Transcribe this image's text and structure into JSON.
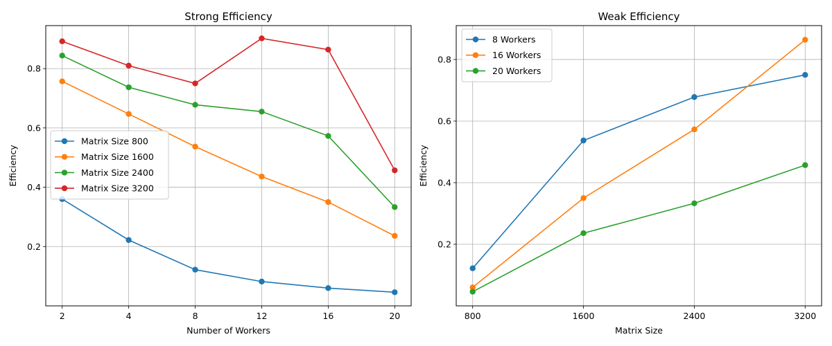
{
  "chart_data": [
    {
      "type": "line",
      "title": "Strong Efficiency",
      "xlabel": "Number of Workers",
      "ylabel": "Efficiency",
      "categories": [
        "2",
        "4",
        "8",
        "12",
        "16",
        "20"
      ],
      "ylim": [
        0.0,
        0.945
      ],
      "yticks": [
        "0.2",
        "0.4",
        "0.6",
        "0.8"
      ],
      "grid": true,
      "legend_position": "center-left",
      "series": [
        {
          "name": "Matrix Size 800",
          "color": "#1f77b4",
          "values": [
            0.36,
            0.222,
            0.122,
            0.082,
            0.06,
            0.046
          ]
        },
        {
          "name": "Matrix Size 1600",
          "color": "#ff7f0e",
          "values": [
            0.757,
            0.647,
            0.537,
            0.436,
            0.35,
            0.236
          ]
        },
        {
          "name": "Matrix Size 2400",
          "color": "#2ca02c",
          "values": [
            0.844,
            0.737,
            0.678,
            0.655,
            0.573,
            0.333
          ]
        },
        {
          "name": "Matrix Size 3200",
          "color": "#d62728",
          "values": [
            0.892,
            0.81,
            0.75,
            0.902,
            0.864,
            0.457
          ]
        }
      ]
    },
    {
      "type": "line",
      "title": "Weak Efficiency",
      "xlabel": "Matrix Size",
      "ylabel": "Efficiency",
      "categories": [
        "800",
        "1600",
        "2400",
        "3200"
      ],
      "ylim": [
        0.0,
        0.91
      ],
      "yticks": [
        "0.2",
        "0.4",
        "0.6",
        "0.8"
      ],
      "grid": true,
      "legend_position": "top-left",
      "series": [
        {
          "name": "8 Workers",
          "color": "#1f77b4",
          "values": [
            0.122,
            0.537,
            0.678,
            0.75
          ]
        },
        {
          "name": "16 Workers",
          "color": "#ff7f0e",
          "values": [
            0.06,
            0.35,
            0.573,
            0.864
          ]
        },
        {
          "name": "20 Workers",
          "color": "#2ca02c",
          "values": [
            0.046,
            0.236,
            0.333,
            0.457
          ]
        }
      ]
    }
  ]
}
